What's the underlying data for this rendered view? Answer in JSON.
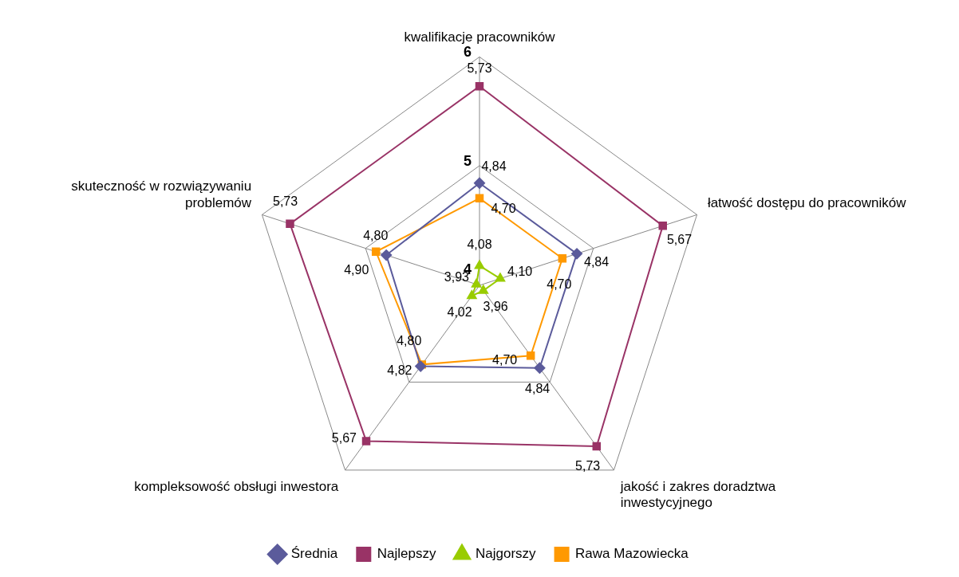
{
  "chart_data": {
    "type": "radar",
    "categories": [
      "kwalifikacje pracowników",
      "łatwość dostępu do pracowników",
      "jakość i zakres doradztwa inwestycyjnego",
      "kompleksowość obsługi inwestora",
      "skuteczność w rozwiązywaniu problemów"
    ],
    "series": [
      {
        "name": "Średnia",
        "color": "#5b5b9b",
        "marker": "diamond",
        "values": [
          4.84,
          4.84,
          4.84,
          4.82,
          4.8
        ],
        "value_labels": [
          "4,84",
          "4,84",
          "4,84",
          "4,82",
          "4,80"
        ]
      },
      {
        "name": "Najlepszy",
        "color": "#993366",
        "marker": "square",
        "values": [
          5.73,
          5.67,
          5.73,
          5.67,
          5.73
        ],
        "value_labels": [
          "5,73",
          "5,67",
          "5,73",
          "5,67",
          "5,73"
        ]
      },
      {
        "name": "Najgorszy",
        "color": "#99cc00",
        "marker": "triangle",
        "values": [
          4.08,
          4.1,
          3.96,
          4.02,
          3.93
        ],
        "value_labels": [
          "4,08",
          "4,10",
          "3,96",
          "4,02",
          "3,93"
        ]
      },
      {
        "name": "Rawa Mazowiecka",
        "color": "#ff9900",
        "marker": "square",
        "values": [
          4.7,
          4.7,
          4.7,
          4.8,
          4.9
        ],
        "value_labels": [
          "4,70",
          "4,70",
          "4,70",
          "4,80",
          "4,90"
        ]
      }
    ],
    "ylim": [
      3.9,
      6
    ],
    "yticks": [
      4,
      5,
      6
    ],
    "grid": true,
    "legend": "bottom"
  }
}
